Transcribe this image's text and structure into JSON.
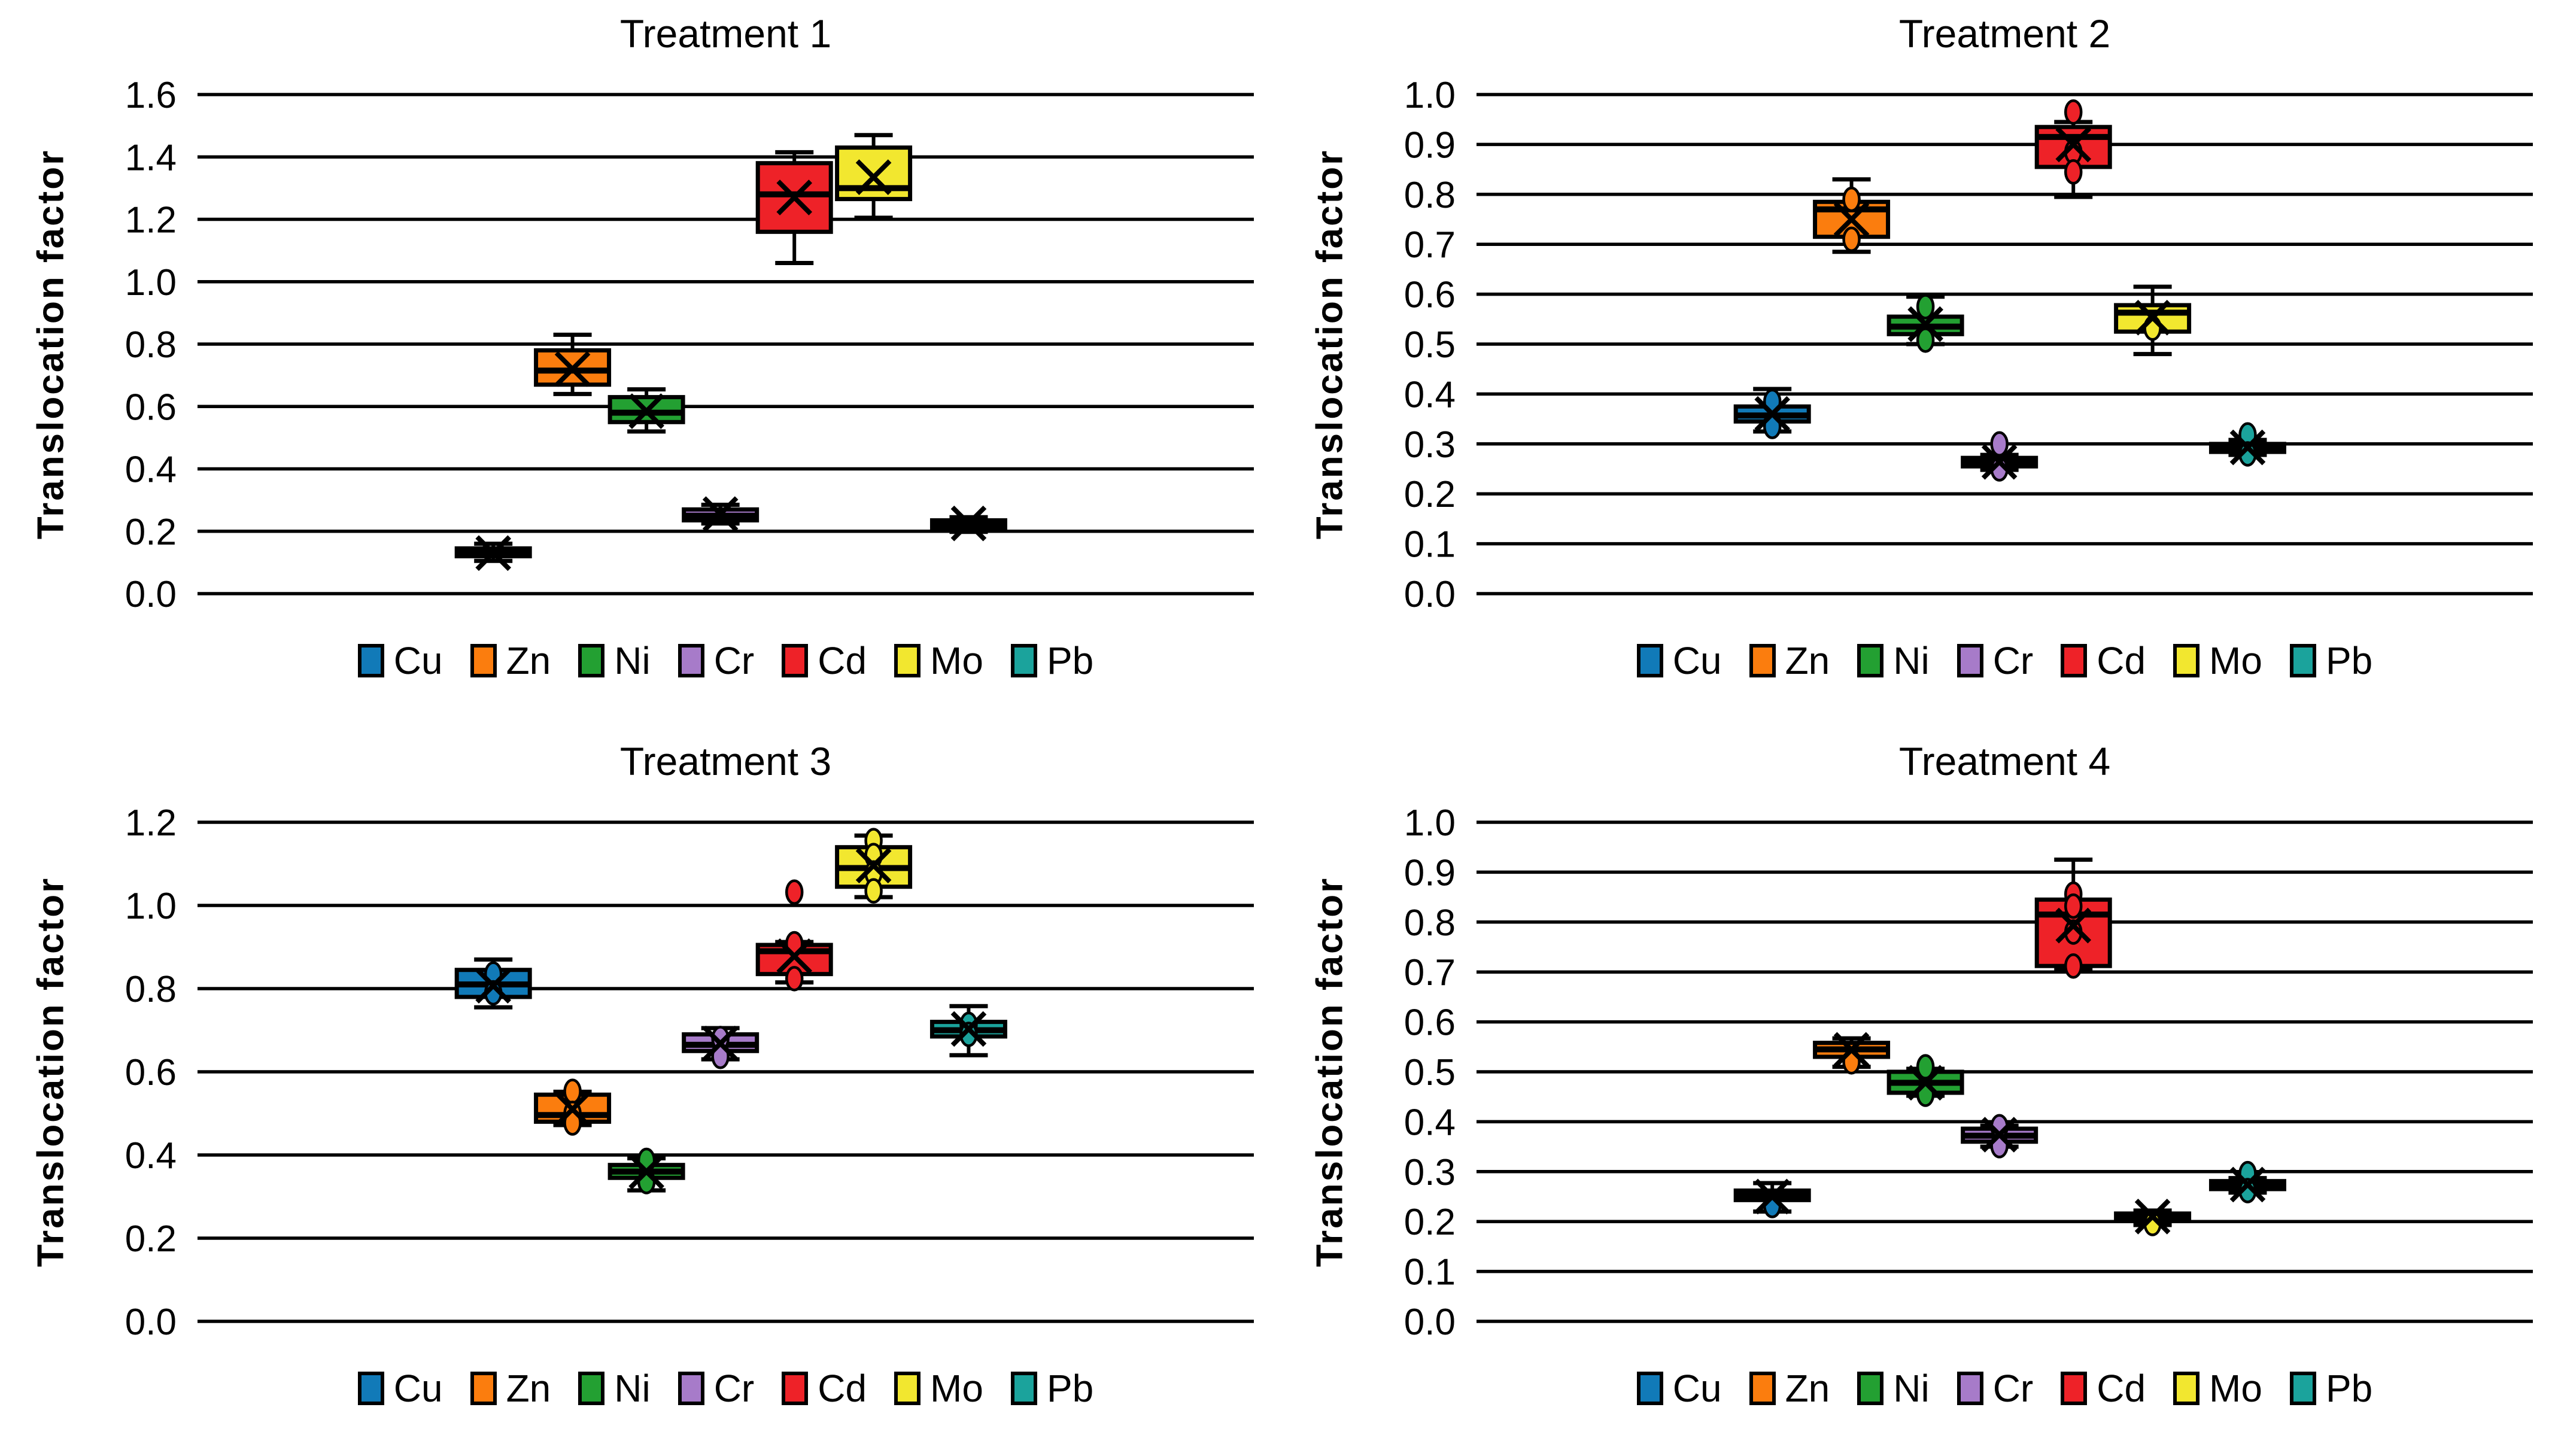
{
  "figure": {
    "kind": "2x2-boxplot-grid",
    "background": "#ffffff",
    "gridline_color": "#000000"
  },
  "metals": [
    {
      "label": "Cu",
      "color": "#117ab8"
    },
    {
      "label": "Zn",
      "color": "#fb7d0e"
    },
    {
      "label": "Ni",
      "color": "#23a032"
    },
    {
      "label": "Cr",
      "color": "#a77bc9"
    },
    {
      "label": "Cd",
      "color": "#ee2228"
    },
    {
      "label": "Mo",
      "color": "#f2e72f"
    },
    {
      "label": "Pb",
      "color": "#1ba39c"
    }
  ],
  "chart_data": [
    {
      "type": "box",
      "title": "Treatment 1",
      "ylabel": "Translocation factor",
      "ylim": [
        0.0,
        1.6
      ],
      "ytick_step": 0.2,
      "grid": true,
      "legend_position": "bottom",
      "series": [
        {
          "metal": "Cu",
          "low": 0.105,
          "q1": 0.12,
          "median": 0.13,
          "q3": 0.145,
          "high": 0.16,
          "mean": 0.13,
          "points": []
        },
        {
          "metal": "Zn",
          "low": 0.64,
          "q1": 0.67,
          "median": 0.715,
          "q3": 0.78,
          "high": 0.83,
          "mean": 0.72,
          "points": []
        },
        {
          "metal": "Ni",
          "low": 0.52,
          "q1": 0.55,
          "median": 0.58,
          "q3": 0.63,
          "high": 0.655,
          "mean": 0.585,
          "points": []
        },
        {
          "metal": "Cr",
          "low": 0.225,
          "q1": 0.235,
          "median": 0.25,
          "q3": 0.27,
          "high": 0.285,
          "mean": 0.255,
          "points": []
        },
        {
          "metal": "Cd",
          "low": 1.06,
          "q1": 1.16,
          "median": 1.28,
          "q3": 1.38,
          "high": 1.415,
          "mean": 1.27,
          "points": []
        },
        {
          "metal": "Mo",
          "low": 1.205,
          "q1": 1.265,
          "median": 1.3,
          "q3": 1.43,
          "high": 1.47,
          "mean": 1.335,
          "points": []
        },
        {
          "metal": "Pb",
          "low": 0.198,
          "q1": 0.205,
          "median": 0.22,
          "q3": 0.235,
          "high": 0.245,
          "mean": 0.225,
          "points": []
        }
      ]
    },
    {
      "type": "box",
      "title": "Treatment 2",
      "ylabel": "Translocation factor",
      "ylim": [
        0.0,
        1.0
      ],
      "ytick_step": 0.1,
      "grid": true,
      "legend_position": "bottom",
      "series": [
        {
          "metal": "Cu",
          "low": 0.325,
          "q1": 0.345,
          "median": 0.357,
          "q3": 0.375,
          "high": 0.41,
          "mean": 0.36,
          "points": [
            0.335,
            0.385
          ]
        },
        {
          "metal": "Zn",
          "low": 0.685,
          "q1": 0.715,
          "median": 0.77,
          "q3": 0.785,
          "high": 0.83,
          "mean": 0.75,
          "points": [
            0.71,
            0.79
          ]
        },
        {
          "metal": "Ni",
          "low": 0.5,
          "q1": 0.52,
          "median": 0.535,
          "q3": 0.555,
          "high": 0.595,
          "mean": 0.54,
          "points": [
            0.575,
            0.508
          ]
        },
        {
          "metal": "Cr",
          "low": 0.248,
          "q1": 0.255,
          "median": 0.263,
          "q3": 0.272,
          "high": 0.278,
          "mean": 0.264,
          "points": [
            0.3,
            0.25
          ]
        },
        {
          "metal": "Cd",
          "low": 0.795,
          "q1": 0.855,
          "median": 0.915,
          "q3": 0.935,
          "high": 0.945,
          "mean": 0.9,
          "points": [
            0.965,
            0.885,
            0.845
          ]
        },
        {
          "metal": "Mo",
          "low": 0.48,
          "q1": 0.525,
          "median": 0.563,
          "q3": 0.578,
          "high": 0.615,
          "mean": 0.553,
          "points": [
            0.532
          ]
        },
        {
          "metal": "Pb",
          "low": 0.278,
          "q1": 0.284,
          "median": 0.292,
          "q3": 0.3,
          "high": 0.308,
          "mean": 0.293,
          "points": [
            0.318,
            0.28
          ]
        }
      ]
    },
    {
      "type": "box",
      "title": "Treatment 3",
      "ylabel": "Translocation factor",
      "ylim": [
        0.0,
        1.2
      ],
      "ytick_step": 0.2,
      "grid": true,
      "legend_position": "bottom",
      "series": [
        {
          "metal": "Cu",
          "low": 0.755,
          "q1": 0.78,
          "median": 0.81,
          "q3": 0.845,
          "high": 0.87,
          "mean": 0.807,
          "points": [
            0.835,
            0.79
          ]
        },
        {
          "metal": "Zn",
          "low": 0.472,
          "q1": 0.48,
          "median": 0.496,
          "q3": 0.545,
          "high": 0.552,
          "mean": 0.51,
          "points": [
            0.553,
            0.5,
            0.477
          ]
        },
        {
          "metal": "Ni",
          "low": 0.315,
          "q1": 0.345,
          "median": 0.36,
          "q3": 0.376,
          "high": 0.392,
          "mean": 0.36,
          "points": [
            0.387,
            0.336
          ]
        },
        {
          "metal": "Cr",
          "low": 0.63,
          "q1": 0.65,
          "median": 0.665,
          "q3": 0.69,
          "high": 0.705,
          "mean": 0.668,
          "points": [
            0.68,
            0.637
          ]
        },
        {
          "metal": "Cd",
          "low": 0.815,
          "q1": 0.835,
          "median": 0.89,
          "q3": 0.905,
          "high": 0.912,
          "mean": 0.878,
          "points": [
            1.032,
            0.908,
            0.824
          ]
        },
        {
          "metal": "Mo",
          "low": 1.02,
          "q1": 1.045,
          "median": 1.09,
          "q3": 1.14,
          "high": 1.168,
          "mean": 1.096,
          "points": [
            1.156,
            1.12,
            1.078,
            1.035
          ]
        },
        {
          "metal": "Pb",
          "low": 0.64,
          "q1": 0.685,
          "median": 0.7,
          "q3": 0.72,
          "high": 0.758,
          "mean": 0.703,
          "points": [
            0.714,
            0.69
          ]
        }
      ]
    },
    {
      "type": "box",
      "title": "Treatment 4",
      "ylabel": "Translocation factor",
      "ylim": [
        0.0,
        1.0
      ],
      "ytick_step": 0.1,
      "grid": true,
      "legend_position": "bottom",
      "series": [
        {
          "metal": "Cu",
          "low": 0.22,
          "q1": 0.243,
          "median": 0.252,
          "q3": 0.262,
          "high": 0.277,
          "mean": 0.25,
          "points": [
            0.232
          ]
        },
        {
          "metal": "Zn",
          "low": 0.51,
          "q1": 0.53,
          "median": 0.545,
          "q3": 0.558,
          "high": 0.567,
          "mean": 0.544,
          "points": [
            0.52
          ]
        },
        {
          "metal": "Ni",
          "low": 0.452,
          "q1": 0.458,
          "median": 0.478,
          "q3": 0.5,
          "high": 0.506,
          "mean": 0.478,
          "points": [
            0.51,
            0.455
          ]
        },
        {
          "metal": "Cr",
          "low": 0.35,
          "q1": 0.36,
          "median": 0.372,
          "q3": 0.386,
          "high": 0.392,
          "mean": 0.374,
          "points": [
            0.39,
            0.352
          ]
        },
        {
          "metal": "Cd",
          "low": 0.705,
          "q1": 0.712,
          "median": 0.815,
          "q3": 0.845,
          "high": 0.925,
          "mean": 0.793,
          "points": [
            0.856,
            0.832,
            0.78,
            0.712
          ]
        },
        {
          "metal": "Mo",
          "low": 0.193,
          "q1": 0.202,
          "median": 0.208,
          "q3": 0.216,
          "high": 0.222,
          "mean": 0.21,
          "points": [
            0.196
          ]
        },
        {
          "metal": "Pb",
          "low": 0.258,
          "q1": 0.265,
          "median": 0.273,
          "q3": 0.281,
          "high": 0.287,
          "mean": 0.274,
          "points": [
            0.296,
            0.262
          ]
        }
      ]
    }
  ]
}
